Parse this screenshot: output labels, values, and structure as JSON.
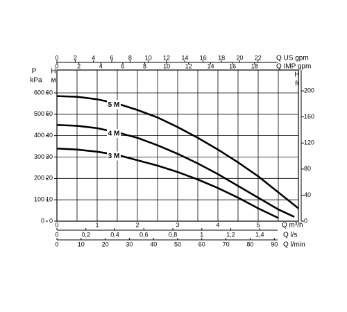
{
  "chart_data": {
    "type": "line",
    "xlabel": "Q m³/h",
    "xlim": [
      0,
      6
    ],
    "xticks": [
      0,
      1,
      2,
      3,
      4,
      5
    ],
    "xgrid": [
      0,
      0.5,
      1,
      1.5,
      2,
      2.5,
      3,
      3.5,
      4,
      4.5,
      5,
      5.5,
      6
    ],
    "ylabel": "H",
    "yunit": "м",
    "ylim": [
      0,
      70.7
    ],
    "yticks": [
      0,
      10,
      20,
      30,
      40,
      50,
      60
    ],
    "grid": true,
    "extra_axes": [
      {
        "side": "left",
        "label": "P",
        "unit": "kPa",
        "lim": [
          0,
          707
        ],
        "ticks": [
          0,
          100,
          200,
          300,
          400,
          500,
          600
        ]
      },
      {
        "side": "right",
        "label": "H",
        "unit": "ft",
        "lim": [
          0,
          232
        ],
        "ticks": [
          0,
          40,
          80,
          120,
          160,
          200
        ]
      },
      {
        "side": "top",
        "label": "Q US gpm",
        "lim": [
          0,
          26.42
        ],
        "ticks": [
          0,
          2,
          4,
          6,
          8,
          10,
          12,
          14,
          16,
          18,
          20,
          22
        ]
      },
      {
        "side": "top",
        "label": "Q IMP gpm",
        "lim": [
          0,
          22
        ],
        "ticks": [
          0,
          2,
          4,
          6,
          8,
          10,
          12,
          14,
          16,
          18
        ]
      },
      {
        "side": "bottom",
        "label": "Q l/s",
        "lim": [
          0,
          1.6667
        ],
        "ticks": [
          0,
          {
            "value": 0.2,
            "label": "0,2"
          },
          {
            "value": 0.4,
            "label": "0,4"
          },
          {
            "value": 0.6,
            "label": "0,6"
          },
          {
            "value": 0.8,
            "label": "0,8"
          },
          1,
          {
            "value": 1.2,
            "label": "1,2"
          },
          {
            "value": 1.4,
            "label": "1,4"
          }
        ]
      },
      {
        "side": "bottom",
        "label": "Q l/min",
        "lim": [
          0,
          100
        ],
        "ticks": [
          0,
          10,
          20,
          30,
          40,
          50,
          60,
          70,
          80,
          90
        ]
      }
    ],
    "series": [
      {
        "name": "5 M",
        "color": "#000000",
        "x": [
          0,
          0.5,
          1,
          1.5,
          2,
          2.5,
          3,
          3.5,
          4,
          4.5,
          5,
          5.5,
          6
        ],
        "values": [
          58.5,
          58.2,
          57,
          55,
          52,
          48.5,
          44,
          39,
          33.5,
          27.5,
          21,
          13.5,
          6
        ]
      },
      {
        "name": "4 M",
        "color": "#000000",
        "x": [
          0,
          0.5,
          1,
          1.5,
          2,
          2.5,
          3,
          3.5,
          4,
          4.5,
          5,
          5.5,
          5.9
        ],
        "values": [
          45,
          44.6,
          43.5,
          41.5,
          39,
          35.5,
          31.5,
          27,
          22,
          16.5,
          11,
          5.5,
          2
        ]
      },
      {
        "name": "3 M",
        "color": "#000000",
        "x": [
          0,
          0.5,
          1,
          1.5,
          2,
          2.5,
          3,
          3.5,
          4,
          4.5,
          5,
          5.5
        ],
        "values": [
          34,
          33.5,
          32.5,
          31,
          28.5,
          26,
          23,
          19.5,
          15.5,
          11,
          6,
          1.5
        ]
      }
    ]
  }
}
